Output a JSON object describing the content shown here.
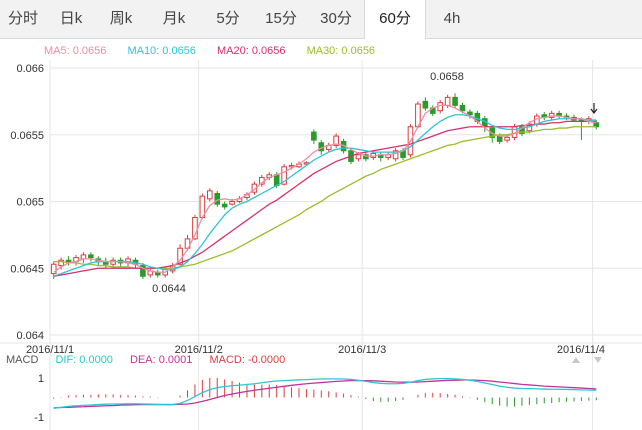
{
  "tabs": [
    {
      "label": "分时",
      "active": false
    },
    {
      "label": "日k",
      "active": false
    },
    {
      "label": "周k",
      "active": false
    },
    {
      "label": "月k",
      "active": false
    },
    {
      "label": "5分",
      "active": false
    },
    {
      "label": "15分",
      "active": false
    },
    {
      "label": "30分",
      "active": false
    },
    {
      "label": "60分",
      "active": true
    },
    {
      "label": "4h",
      "active": false
    }
  ],
  "ma_legend": {
    "ma5": "MA5: 0.0656",
    "ma10": "MA10: 0.0656",
    "ma20": "MA20: 0.0656",
    "ma30": "MA30: 0.0656"
  },
  "macd_legend": {
    "label": "MACD",
    "dif": "DIF: 0.0000",
    "dea": "DEA: 0.0001",
    "macd": "MACD: -0.0000"
  },
  "colors": {
    "ma5": "#f08ca6",
    "ma10": "#2ec4d6",
    "ma20": "#d6316f",
    "ma30": "#9cbd2a",
    "up": "#d93f3f",
    "down": "#2a9a2a",
    "dif": "#2ec4d6",
    "dea": "#c0339a"
  },
  "chart_data": [
    {
      "type": "candlestick",
      "y_ticks": [
        "0.066",
        "0.0655",
        "0.065",
        "0.0645",
        "0.064"
      ],
      "ylim": [
        0.064,
        0.066
      ],
      "x_ticks": [
        "2016/11/1",
        "2016/11/2",
        "2016/11/3",
        "2016/11/4"
      ],
      "annotations": [
        "0.0658",
        "0.0644"
      ],
      "candles": [
        [
          0.06446,
          0.06453,
          0.06442,
          0.06455
        ],
        [
          0.06452,
          0.06456,
          0.06449,
          0.06458
        ],
        [
          0.06456,
          0.06455,
          0.06452,
          0.06459
        ],
        [
          0.06455,
          0.06458,
          0.06452,
          0.0646
        ],
        [
          0.06457,
          0.0646,
          0.06454,
          0.06462
        ],
        [
          0.0646,
          0.06458,
          0.06455,
          0.06462
        ],
        [
          0.06457,
          0.06455,
          0.06452,
          0.06459
        ],
        [
          0.06455,
          0.06453,
          0.0645,
          0.06458
        ],
        [
          0.06453,
          0.06456,
          0.0645,
          0.06458
        ],
        [
          0.06456,
          0.06454,
          0.06451,
          0.06458
        ],
        [
          0.06454,
          0.06457,
          0.06451,
          0.06459
        ],
        [
          0.06456,
          0.06453,
          0.0645,
          0.06458
        ],
        [
          0.06452,
          0.06444,
          0.06442,
          0.06454
        ],
        [
          0.06445,
          0.06448,
          0.06443,
          0.0645
        ],
        [
          0.06447,
          0.06445,
          0.06443,
          0.06449
        ],
        [
          0.06445,
          0.06449,
          0.06443,
          0.06451
        ],
        [
          0.06448,
          0.06452,
          0.06446,
          0.06454
        ],
        [
          0.06453,
          0.06465,
          0.06452,
          0.06468
        ],
        [
          0.06465,
          0.06472,
          0.06463,
          0.06475
        ],
        [
          0.06472,
          0.06488,
          0.06471,
          0.0649
        ],
        [
          0.06488,
          0.06504,
          0.06487,
          0.06506
        ],
        [
          0.06502,
          0.06508,
          0.065,
          0.0651
        ],
        [
          0.06506,
          0.06498,
          0.06496,
          0.06508
        ],
        [
          0.06498,
          0.06496,
          0.06494,
          0.065
        ],
        [
          0.06498,
          0.065,
          0.06497,
          0.06502
        ],
        [
          0.065,
          0.06502,
          0.06499,
          0.06504
        ],
        [
          0.06503,
          0.06505,
          0.06501,
          0.06507
        ],
        [
          0.06507,
          0.06513,
          0.06505,
          0.06515
        ],
        [
          0.06513,
          0.06518,
          0.06511,
          0.0652
        ],
        [
          0.06518,
          0.0652,
          0.06516,
          0.06522
        ],
        [
          0.0652,
          0.06512,
          0.0651,
          0.06522
        ],
        [
          0.06513,
          0.06526,
          0.06512,
          0.06528
        ],
        [
          0.06526,
          0.06527,
          0.06524,
          0.06529
        ],
        [
          0.06526,
          0.06528,
          0.06525,
          0.0653
        ],
        [
          0.06528,
          0.06529,
          0.06527,
          0.0653
        ],
        [
          0.06552,
          0.06546,
          0.06543,
          0.06554
        ],
        [
          0.06544,
          0.06538,
          0.06535,
          0.06546
        ],
        [
          0.06539,
          0.06542,
          0.06537,
          0.06544
        ],
        [
          0.06542,
          0.06549,
          0.0654,
          0.06551
        ],
        [
          0.06545,
          0.06538,
          0.06536,
          0.06547
        ],
        [
          0.06538,
          0.0653,
          0.06528,
          0.0654
        ],
        [
          0.06532,
          0.06535,
          0.0653,
          0.06537
        ],
        [
          0.06535,
          0.06532,
          0.0653,
          0.06537
        ],
        [
          0.06533,
          0.06536,
          0.06531,
          0.06538
        ],
        [
          0.06535,
          0.06533,
          0.0653,
          0.06537
        ],
        [
          0.06533,
          0.06535,
          0.06531,
          0.06537
        ],
        [
          0.06532,
          0.06538,
          0.0653,
          0.0654
        ],
        [
          0.06538,
          0.06533,
          0.06531,
          0.0654
        ],
        [
          0.06535,
          0.06556,
          0.06533,
          0.06558
        ],
        [
          0.06556,
          0.06573,
          0.06555,
          0.06575
        ],
        [
          0.06575,
          0.0657,
          0.06568,
          0.06578
        ],
        [
          0.0657,
          0.06566,
          0.06564,
          0.06572
        ],
        [
          0.06568,
          0.06574,
          0.06566,
          0.06576
        ],
        [
          0.06572,
          0.06578,
          0.0657,
          0.0658
        ],
        [
          0.06578,
          0.06572,
          0.0657,
          0.06581
        ],
        [
          0.06572,
          0.06568,
          0.06566,
          0.06574
        ],
        [
          0.06567,
          0.06565,
          0.06562,
          0.06569
        ],
        [
          0.06566,
          0.0656,
          0.06558,
          0.06568
        ],
        [
          0.06562,
          0.06556,
          0.06552,
          0.06564
        ],
        [
          0.06555,
          0.06548,
          0.06544,
          0.06557
        ],
        [
          0.06549,
          0.06545,
          0.06543,
          0.06551
        ],
        [
          0.06546,
          0.06548,
          0.06544,
          0.0655
        ],
        [
          0.06548,
          0.06556,
          0.06546,
          0.06558
        ],
        [
          0.06556,
          0.06551,
          0.06549,
          0.06558
        ],
        [
          0.06553,
          0.06558,
          0.06551,
          0.0656
        ],
        [
          0.06558,
          0.06564,
          0.06556,
          0.06566
        ],
        [
          0.06565,
          0.06563,
          0.06561,
          0.06567
        ],
        [
          0.06563,
          0.06566,
          0.06561,
          0.06568
        ],
        [
          0.06566,
          0.06564,
          0.06562,
          0.06568
        ],
        [
          0.06564,
          0.06563,
          0.06561,
          0.06566
        ],
        [
          0.06563,
          0.06561,
          0.0656,
          0.06565
        ],
        [
          0.06561,
          0.0656,
          0.06546,
          0.06563
        ],
        [
          0.0656,
          0.06562,
          0.06558,
          0.06564
        ],
        [
          0.06559,
          0.06556,
          0.06554,
          0.06561
        ]
      ],
      "ma5": [
        0.06447,
        0.06451,
        0.06454,
        0.06455,
        0.06457,
        0.06457,
        0.06456,
        0.06455,
        0.06455,
        0.06455,
        0.06454,
        0.06453,
        0.0645,
        0.06448,
        0.06447,
        0.06447,
        0.06451,
        0.06456,
        0.06464,
        0.06475,
        0.06488,
        0.06497,
        0.06501,
        0.06502,
        0.06501,
        0.06502,
        0.06505,
        0.06509,
        0.06514,
        0.06518,
        0.0652,
        0.06522,
        0.06525,
        0.06528,
        0.06532,
        0.06537,
        0.0654,
        0.06542,
        0.06543,
        0.06542,
        0.06539,
        0.06536,
        0.06534,
        0.06534,
        0.06535,
        0.06535,
        0.06536,
        0.06538,
        0.06545,
        0.06556,
        0.06566,
        0.0657,
        0.06572,
        0.06572,
        0.0657,
        0.06567,
        0.06564,
        0.0656,
        0.06555,
        0.06551,
        0.06549,
        0.06549,
        0.06551,
        0.06555,
        0.06559,
        0.06562,
        0.06563,
        0.06564,
        0.06564,
        0.06563,
        0.06562,
        0.06562,
        0.0656,
        0.06559
      ],
      "ma10": [
        0.06444,
        0.06446,
        0.06448,
        0.0645,
        0.06452,
        0.06454,
        0.06455,
        0.06455,
        0.06455,
        0.06455,
        0.06455,
        0.06454,
        0.06453,
        0.06451,
        0.0645,
        0.06449,
        0.06449,
        0.06451,
        0.06455,
        0.06461,
        0.06468,
        0.06476,
        0.06483,
        0.0649,
        0.06495,
        0.06498,
        0.065,
        0.06503,
        0.06506,
        0.06509,
        0.06512,
        0.06515,
        0.06519,
        0.06523,
        0.06527,
        0.06531,
        0.06534,
        0.06537,
        0.06539,
        0.0654,
        0.0654,
        0.06539,
        0.06538,
        0.06537,
        0.06537,
        0.06537,
        0.06537,
        0.06538,
        0.06541,
        0.06546,
        0.06551,
        0.06556,
        0.0656,
        0.06563,
        0.06565,
        0.06565,
        0.06564,
        0.06562,
        0.0656,
        0.06557,
        0.06555,
        0.06554,
        0.06554,
        0.06555,
        0.06556,
        0.06558,
        0.0656,
        0.06561,
        0.06562,
        0.06562,
        0.06562,
        0.06562,
        0.06561,
        0.06561
      ],
      "ma20": [
        0.06444,
        0.06445,
        0.06446,
        0.06447,
        0.06448,
        0.06449,
        0.0645,
        0.0645,
        0.0645,
        0.0645,
        0.0645,
        0.0645,
        0.0645,
        0.0645,
        0.0645,
        0.06451,
        0.06452,
        0.06454,
        0.06456,
        0.06459,
        0.06462,
        0.06466,
        0.0647,
        0.06474,
        0.06478,
        0.06482,
        0.06486,
        0.0649,
        0.06494,
        0.06498,
        0.06501,
        0.06505,
        0.06509,
        0.06513,
        0.06517,
        0.06521,
        0.06524,
        0.06527,
        0.0653,
        0.06532,
        0.06534,
        0.06536,
        0.06537,
        0.06538,
        0.06539,
        0.0654,
        0.06541,
        0.06542,
        0.06543,
        0.06545,
        0.06547,
        0.06549,
        0.06551,
        0.06553,
        0.06554,
        0.06555,
        0.06556,
        0.06556,
        0.06556,
        0.06556,
        0.06556,
        0.06556,
        0.06556,
        0.06557,
        0.06557,
        0.06558,
        0.06558,
        0.06559,
        0.06559,
        0.0656,
        0.0656,
        0.0656,
        0.0656,
        0.0656
      ],
      "ma30": [
        0.06455,
        0.06455,
        0.06454,
        0.06454,
        0.06453,
        0.06453,
        0.06452,
        0.06452,
        0.06451,
        0.06451,
        0.06451,
        0.0645,
        0.0645,
        0.0645,
        0.0645,
        0.0645,
        0.0645,
        0.06451,
        0.06452,
        0.06453,
        0.06455,
        0.06457,
        0.06459,
        0.06461,
        0.06463,
        0.06466,
        0.06469,
        0.06472,
        0.06475,
        0.06478,
        0.06481,
        0.06484,
        0.06487,
        0.0649,
        0.06494,
        0.06497,
        0.065,
        0.06504,
        0.06507,
        0.0651,
        0.06513,
        0.06516,
        0.06519,
        0.06521,
        0.06524,
        0.06526,
        0.06528,
        0.0653,
        0.06532,
        0.06534,
        0.06536,
        0.06538,
        0.0654,
        0.06542,
        0.06543,
        0.06545,
        0.06546,
        0.06547,
        0.06548,
        0.06549,
        0.0655,
        0.0655,
        0.06551,
        0.06552,
        0.06552,
        0.06553,
        0.06554,
        0.06554,
        0.06555,
        0.06555,
        0.06556,
        0.06556,
        0.06556,
        0.06556
      ]
    },
    {
      "type": "macd",
      "y_ticks": [
        "1",
        "-1"
      ],
      "ylim": [
        -1.4,
        1.4
      ],
      "dif": [
        -0.55,
        -0.5,
        -0.45,
        -0.42,
        -0.4,
        -0.38,
        -0.36,
        -0.34,
        -0.33,
        -0.33,
        -0.32,
        -0.32,
        -0.33,
        -0.34,
        -0.35,
        -0.36,
        -0.36,
        -0.3,
        -0.15,
        0.05,
        0.25,
        0.4,
        0.5,
        0.56,
        0.6,
        0.63,
        0.66,
        0.7,
        0.75,
        0.8,
        0.84,
        0.86,
        0.88,
        0.9,
        0.91,
        0.93,
        0.94,
        0.95,
        0.95,
        0.94,
        0.92,
        0.88,
        0.82,
        0.76,
        0.72,
        0.7,
        0.7,
        0.72,
        0.78,
        0.86,
        0.92,
        0.95,
        0.96,
        0.96,
        0.95,
        0.92,
        0.88,
        0.82,
        0.74,
        0.66,
        0.58,
        0.52,
        0.48,
        0.46,
        0.45,
        0.44,
        0.43,
        0.42,
        0.42,
        0.41,
        0.4,
        0.39,
        0.38,
        0.37
      ],
      "dea": [
        -0.52,
        -0.51,
        -0.5,
        -0.48,
        -0.47,
        -0.45,
        -0.44,
        -0.42,
        -0.41,
        -0.39,
        -0.38,
        -0.37,
        -0.36,
        -0.36,
        -0.36,
        -0.36,
        -0.36,
        -0.35,
        -0.33,
        -0.28,
        -0.2,
        -0.1,
        0.0,
        0.1,
        0.18,
        0.25,
        0.31,
        0.37,
        0.42,
        0.47,
        0.52,
        0.57,
        0.62,
        0.66,
        0.7,
        0.73,
        0.76,
        0.79,
        0.82,
        0.84,
        0.86,
        0.86,
        0.86,
        0.85,
        0.83,
        0.81,
        0.79,
        0.78,
        0.78,
        0.79,
        0.81,
        0.83,
        0.85,
        0.87,
        0.88,
        0.89,
        0.89,
        0.88,
        0.86,
        0.83,
        0.79,
        0.75,
        0.71,
        0.67,
        0.64,
        0.61,
        0.58,
        0.56,
        0.54,
        0.52,
        0.5,
        0.48,
        0.46,
        0.44
      ]
    }
  ]
}
